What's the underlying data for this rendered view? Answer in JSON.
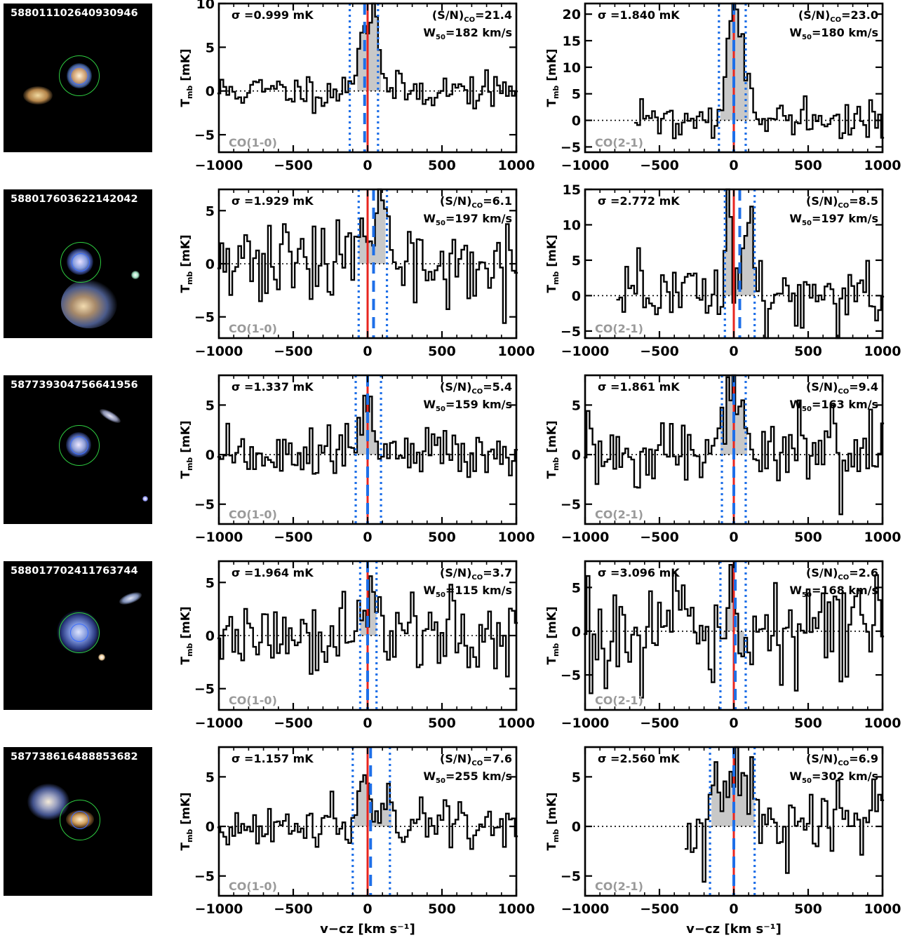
{
  "thumbnails": [
    {
      "objid": "588011102640930946",
      "neighbors": [
        "elliptical galaxy left"
      ]
    },
    {
      "objid": "588017603622142042",
      "neighbors": [
        "spiral galaxy below",
        "green star right"
      ]
    },
    {
      "objid": "587739304756641956",
      "neighbors": [
        "edge-on galaxy upper right",
        "blue star lower right"
      ]
    },
    {
      "objid": "588017702411763744",
      "neighbors": [
        "edge-on galaxy upper right",
        "star lower right"
      ]
    },
    {
      "objid": "587738616488853682",
      "neighbors": [
        "spiral galaxy upper left"
      ]
    }
  ],
  "shared_xlabel": "v−cz [km s⁻¹]",
  "ylabel_main": "T",
  "ylabel_sub": "mb",
  "ylabel_unit": "[mK]",
  "sigma_prefix": "σ =",
  "sn_prefix": "(S/N)",
  "sn_sub": "CO",
  "w_prefix": "W",
  "w_sub": "50",
  "colors": {
    "line": "#000000",
    "fill": "#c8c8c8",
    "red": "#e8251f",
    "blue": "#1e6fe8",
    "dotted": "#1e6fe8",
    "linelabel": "#9a9a9a"
  },
  "chart_data": [
    {
      "type": "line",
      "line": "CO(1-0)",
      "sigma": "0.999 mK",
      "sn": "21.4",
      "w50": "182 km/s",
      "xlim": [
        -1000,
        1000
      ],
      "ylim": [
        -7,
        10
      ],
      "yticks": [
        -5,
        0,
        5,
        10
      ],
      "xticks": [
        -1000,
        -500,
        0,
        500,
        1000
      ],
      "v_center": -20,
      "v_dotted": [
        -120,
        70
      ],
      "v_start": -1000,
      "v_end": 1000,
      "dv": 20,
      "seed": 11,
      "noise": 1.0,
      "peaks": [
        {
          "v": -30,
          "w": 40,
          "a": 7
        },
        {
          "v": 50,
          "w": 30,
          "a": 9
        }
      ],
      "fill_range": [
        -70,
        90
      ]
    },
    {
      "type": "line",
      "line": "CO(2-1)",
      "sigma": "1.840 mK",
      "sn": "23.0",
      "w50": "180 km/s",
      "xlim": [
        -1000,
        1000
      ],
      "ylim": [
        -6,
        22
      ],
      "yticks": [
        -5,
        0,
        5,
        10,
        15,
        20
      ],
      "xticks": [
        -1000,
        -500,
        0,
        500,
        1000
      ],
      "v_center": 0,
      "v_dotted": [
        -100,
        80
      ],
      "v_start": -660,
      "v_end": 1000,
      "dv": 20,
      "seed": 22,
      "noise": 1.8,
      "peaks": [
        {
          "v": -10,
          "w": 35,
          "a": 18
        },
        {
          "v": 60,
          "w": 40,
          "a": 10
        }
      ],
      "fill_range": [
        -90,
        100
      ]
    },
    {
      "type": "line",
      "line": "CO(1-0)",
      "sigma": "1.929 mK",
      "sn": "6.1",
      "w50": "197 km/s",
      "xlim": [
        -1000,
        1000
      ],
      "ylim": [
        -7,
        7
      ],
      "yticks": [
        -5,
        0,
        5
      ],
      "xticks": [
        -1000,
        -500,
        0,
        500,
        1000
      ],
      "v_center": 40,
      "v_dotted": [
        -60,
        130
      ],
      "v_start": -1000,
      "v_end": 1000,
      "dv": 20,
      "seed": 33,
      "noise": 1.9,
      "peaks": [
        {
          "v": -40,
          "w": 25,
          "a": 5.5
        },
        {
          "v": 90,
          "w": 30,
          "a": 5
        }
      ],
      "fill_range": [
        -60,
        120
      ]
    },
    {
      "type": "line",
      "line": "CO(2-1)",
      "sigma": "2.772 mK",
      "sn": "8.5",
      "w50": "197 km/s",
      "xlim": [
        -1000,
        1000
      ],
      "ylim": [
        -6,
        15
      ],
      "yticks": [
        -5,
        0,
        5,
        10,
        15
      ],
      "xticks": [
        -1000,
        -500,
        0,
        500,
        1000
      ],
      "v_center": 40,
      "v_dotted": [
        -60,
        140
      ],
      "v_start": -780,
      "v_end": 1000,
      "dv": 20,
      "seed": 44,
      "noise": 2.8,
      "peaks": [
        {
          "v": -40,
          "w": 20,
          "a": 13
        },
        {
          "v": 110,
          "w": 25,
          "a": 12
        }
      ],
      "fill_range": [
        -60,
        140
      ]
    },
    {
      "type": "line",
      "line": "CO(1-0)",
      "sigma": "1.337 mK",
      "sn": "5.4",
      "w50": "159 km/s",
      "xlim": [
        -1000,
        1000
      ],
      "ylim": [
        -7,
        8
      ],
      "yticks": [
        -5,
        0,
        5
      ],
      "xticks": [
        -1000,
        -500,
        0,
        500,
        1000
      ],
      "v_center": 0,
      "v_dotted": [
        -80,
        90
      ],
      "v_start": -1000,
      "v_end": 1000,
      "dv": 20,
      "seed": 55,
      "noise": 1.3,
      "peaks": [
        {
          "v": 0,
          "w": 60,
          "a": 3.8
        }
      ],
      "fill_range": [
        -60,
        80
      ]
    },
    {
      "type": "line",
      "line": "CO(2-1)",
      "sigma": "1.861 mK",
      "sn": "9.4",
      "w50": "163 km/s",
      "xlim": [
        -1000,
        1000
      ],
      "ylim": [
        -7,
        8
      ],
      "yticks": [
        -5,
        0,
        5
      ],
      "xticks": [
        -1000,
        -500,
        0,
        500,
        1000
      ],
      "v_center": 0,
      "v_dotted": [
        -80,
        80
      ],
      "v_start": -1000,
      "v_end": 1000,
      "dv": 20,
      "seed": 66,
      "noise": 1.9,
      "peaks": [
        {
          "v": 0,
          "w": 60,
          "a": 6
        }
      ],
      "fill_range": [
        -90,
        90
      ]
    },
    {
      "type": "line",
      "line": "CO(1-0)",
      "sigma": "1.964 mK",
      "sn": "3.7",
      "w50": "115 km/s",
      "xlim": [
        -1000,
        1000
      ],
      "ylim": [
        -7,
        7
      ],
      "yticks": [
        -5,
        0,
        5
      ],
      "xticks": [
        -1000,
        -500,
        0,
        500,
        1000
      ],
      "v_center": 0,
      "v_dotted": [
        -50,
        60
      ],
      "v_start": -1000,
      "v_end": 1000,
      "dv": 20,
      "seed": 77,
      "noise": 2.0,
      "peaks": [
        {
          "v": -20,
          "w": 25,
          "a": 3.5
        },
        {
          "v": 40,
          "w": 20,
          "a": 2.5
        }
      ],
      "fill_range": [
        -50,
        60
      ]
    },
    {
      "type": "line",
      "line": "CO(2-1)",
      "sigma": "3.096 mK",
      "sn": "2.6",
      "w50": "168 km/s",
      "xlim": [
        -1000,
        1000
      ],
      "ylim": [
        -9,
        8
      ],
      "yticks": [
        -5,
        0,
        5
      ],
      "xticks": [
        -1000,
        -500,
        0,
        500,
        1000
      ],
      "v_center": 10,
      "v_dotted": [
        -90,
        80
      ],
      "v_start": -1000,
      "v_end": 1000,
      "dv": 20,
      "seed": 88,
      "noise": 3.1,
      "peaks": [
        {
          "v": 0,
          "w": 40,
          "a": 4
        }
      ],
      "fill_range": [
        -70,
        70
      ]
    },
    {
      "type": "line",
      "line": "CO(1-0)",
      "sigma": "1.157 mK",
      "sn": "7.6",
      "w50": "255 km/s",
      "xlim": [
        -1000,
        1000
      ],
      "ylim": [
        -7,
        8
      ],
      "yticks": [
        -5,
        0,
        5
      ],
      "xticks": [
        -1000,
        -500,
        0,
        500,
        1000
      ],
      "v_center": 20,
      "v_dotted": [
        -100,
        150
      ],
      "v_start": -1000,
      "v_end": 1000,
      "dv": 20,
      "seed": 99,
      "noise": 1.2,
      "peaks": [
        {
          "v": -30,
          "w": 40,
          "a": 4.5
        },
        {
          "v": 120,
          "w": 40,
          "a": 3.5
        }
      ],
      "fill_range": [
        -90,
        160
      ]
    },
    {
      "type": "line",
      "line": "CO(2-1)",
      "sigma": "2.560 mK",
      "sn": "6.9",
      "w50": "302 km/s",
      "xlim": [
        -1000,
        1000
      ],
      "ylim": [
        -7,
        8
      ],
      "yticks": [
        -5,
        0,
        5
      ],
      "xticks": [
        -1000,
        -500,
        0,
        500,
        1000
      ],
      "v_center": 0,
      "v_dotted": [
        -160,
        140
      ],
      "v_start": -320,
      "v_end": 1000,
      "dv": 20,
      "seed": 111,
      "noise": 2.5,
      "peaks": [
        {
          "v": 0,
          "w": 90,
          "a": 5.5
        }
      ],
      "fill_range": [
        -150,
        140
      ]
    }
  ]
}
